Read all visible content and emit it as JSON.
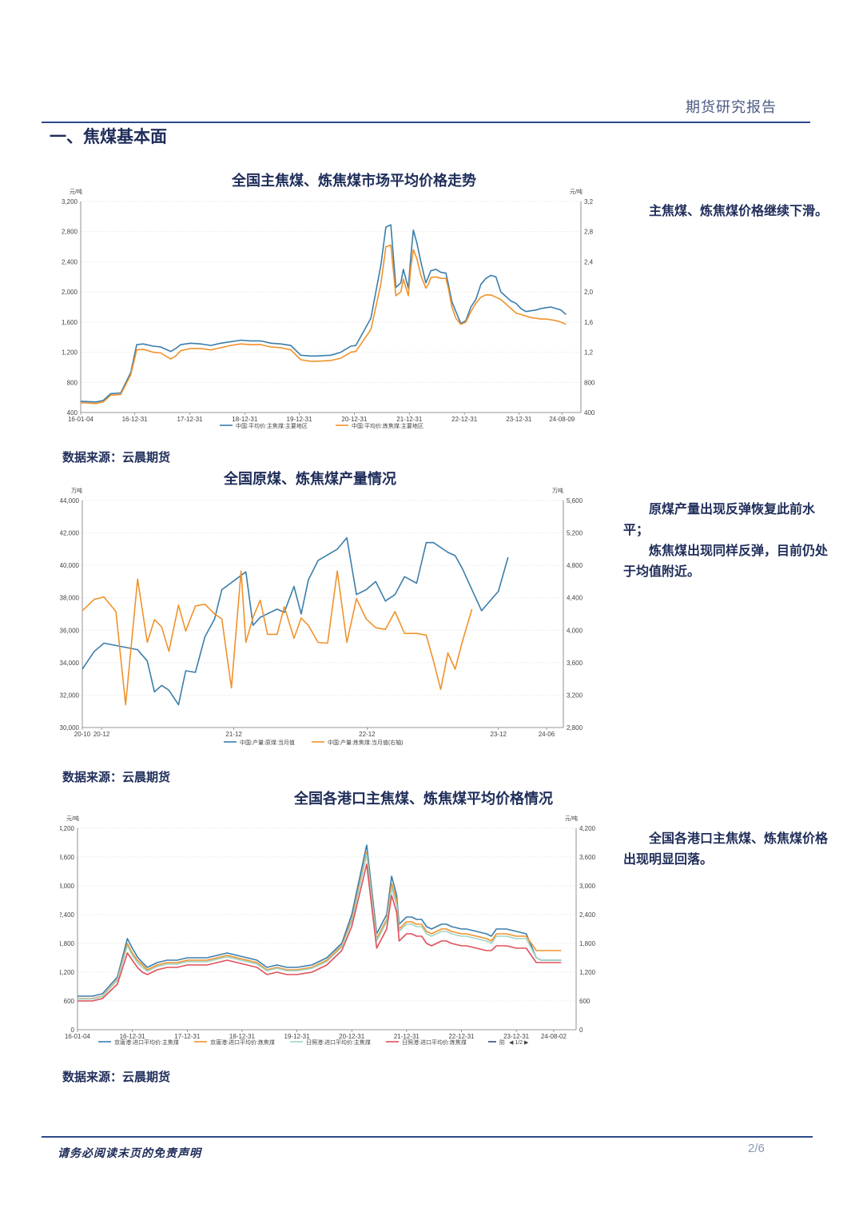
{
  "header": {
    "title": "期货研究报告"
  },
  "section": {
    "title": "一、焦煤基本面"
  },
  "chart1": {
    "title": "全国主焦煤、炼焦煤市场平均价格走势",
    "source": "数据来源：云晨期货",
    "comment": [
      "主焦煤、炼焦煤价格继续下滑。"
    ]
  },
  "chart2": {
    "title": "全国原煤、炼焦煤产量情况",
    "source": "数据来源：云晨期货",
    "comment": [
      "原煤产量出现反弹恢复此前水平；",
      "炼焦煤出现同样反弹，目前仍处于均值附近。"
    ]
  },
  "chart3": {
    "title": "全国各港口主焦煤、炼焦煤平均价格情况",
    "source": "数据来源：云晨期货",
    "comment": [
      "全国各港口主焦煤、炼焦煤价格出现明显回落。"
    ]
  },
  "footer": {
    "disclaimer": "请务必阅读末页的免责声明",
    "page": "2/6"
  },
  "chart_data": [
    {
      "type": "line",
      "title": "全国主焦煤、炼焦煤市场平均价格走势",
      "yunit_left": "元/吨",
      "yunit_right": "元/吨",
      "ylim": [
        400,
        3200
      ],
      "yticks": [
        "400",
        "800",
        "1,200",
        "1,600",
        "2,000",
        "2,400",
        "2,800",
        "3,200"
      ],
      "yticks_right": [
        "400",
        "800",
        "1,2",
        "1,6",
        "2,0",
        "2,4",
        "2,8",
        "3,2"
      ],
      "xtick_labels": [
        "16-01-04",
        "16-12-31",
        "17-12-31",
        "18-12-31",
        "19-12-31",
        "20-12-31",
        "21-12-31",
        "22-12-31",
        "23-12-31",
        "24-08-09"
      ],
      "xtick_pos": [
        0.0,
        0.108,
        0.218,
        0.328,
        0.437,
        0.547,
        0.657,
        0.767,
        0.876,
        0.962
      ],
      "x": [
        0,
        0.03,
        0.045,
        0.06,
        0.08,
        0.1,
        0.112,
        0.125,
        0.145,
        0.16,
        0.18,
        0.19,
        0.2,
        0.22,
        0.24,
        0.26,
        0.28,
        0.3,
        0.32,
        0.34,
        0.36,
        0.38,
        0.4,
        0.42,
        0.44,
        0.46,
        0.47,
        0.5,
        0.52,
        0.54,
        0.55,
        0.58,
        0.6,
        0.61,
        0.62,
        0.63,
        0.64,
        0.645,
        0.655,
        0.66,
        0.665,
        0.672,
        0.68,
        0.69,
        0.695,
        0.7,
        0.71,
        0.72,
        0.73,
        0.735,
        0.742,
        0.75,
        0.76,
        0.77,
        0.78,
        0.79,
        0.8,
        0.81,
        0.82,
        0.83,
        0.84,
        0.86,
        0.87,
        0.88,
        0.89,
        0.9,
        0.91,
        0.92,
        0.93,
        0.94,
        0.95,
        0.96,
        0.97
      ],
      "series": [
        {
          "name": "中国:平均价:主焦煤:主要地区",
          "color": "#3b7eab",
          "values": [
            550,
            540,
            560,
            650,
            660,
            930,
            1300,
            1310,
            1280,
            1270,
            1210,
            1250,
            1300,
            1320,
            1310,
            1290,
            1320,
            1340,
            1360,
            1350,
            1350,
            1320,
            1310,
            1290,
            1160,
            1150,
            1150,
            1160,
            1200,
            1280,
            1290,
            1650,
            2350,
            2860,
            2890,
            2060,
            2120,
            2300,
            2050,
            2480,
            2820,
            2650,
            2400,
            2120,
            2200,
            2280,
            2300,
            2260,
            2250,
            2100,
            1870,
            1740,
            1580,
            1620,
            1800,
            1900,
            2100,
            2180,
            2220,
            2200,
            2000,
            1880,
            1850,
            1780,
            1740,
            1750,
            1760,
            1780,
            1790,
            1800,
            1780,
            1760,
            1700
          ]
        },
        {
          "name": "中国:平均价:炼焦煤:主要地区",
          "color": "#f0922b",
          "values": [
            530,
            520,
            540,
            630,
            640,
            900,
            1230,
            1240,
            1200,
            1190,
            1110,
            1150,
            1220,
            1250,
            1250,
            1230,
            1260,
            1290,
            1310,
            1300,
            1300,
            1270,
            1260,
            1230,
            1100,
            1080,
            1080,
            1090,
            1120,
            1200,
            1210,
            1500,
            2100,
            2600,
            2620,
            1950,
            2000,
            2170,
            1950,
            2330,
            2560,
            2440,
            2220,
            2050,
            2100,
            2190,
            2200,
            2180,
            2180,
            2050,
            1800,
            1650,
            1570,
            1600,
            1740,
            1850,
            1930,
            1960,
            1960,
            1930,
            1900,
            1780,
            1720,
            1700,
            1680,
            1660,
            1650,
            1640,
            1640,
            1630,
            1620,
            1600,
            1570
          ]
        }
      ]
    },
    {
      "type": "line",
      "title": "全国原煤、炼焦煤产量情况",
      "yunit_left": "万吨",
      "yunit_right": "万吨",
      "ylim": [
        30000,
        44000
      ],
      "ylim_right": [
        2800,
        5600
      ],
      "yticks": [
        "30,000",
        "32,000",
        "34,000",
        "36,000",
        "38,000",
        "40,000",
        "42,000",
        "44,000"
      ],
      "yticks_right": [
        "2,800",
        "3,200",
        "3,600",
        "4,000",
        "4,400",
        "4,800",
        "5,200",
        "5,600"
      ],
      "xtick_labels": [
        "20-10",
        "20-12",
        "21-12",
        "22-12",
        "23-12",
        "24-06"
      ],
      "xtick_pos": [
        0.0,
        0.04,
        0.315,
        0.592,
        0.865,
        0.965
      ],
      "x": [
        0,
        0.025,
        0.045,
        0.07,
        0.09,
        0.115,
        0.135,
        0.15,
        0.165,
        0.18,
        0.2,
        0.215,
        0.235,
        0.255,
        0.275,
        0.29,
        0.31,
        0.33,
        0.34,
        0.355,
        0.37,
        0.385,
        0.405,
        0.42,
        0.44,
        0.455,
        0.47,
        0.49,
        0.51,
        0.53,
        0.55,
        0.57,
        0.59,
        0.61,
        0.63,
        0.65,
        0.67,
        0.695,
        0.715,
        0.73,
        0.745,
        0.76,
        0.775,
        0.79,
        0.81,
        0.83,
        0.85,
        0.865,
        0.885,
        0.905,
        0.925,
        0.945,
        0.965
      ],
      "series": [
        {
          "name": "中国:产量:原煤:当月值",
          "color": "#3b7eab",
          "values": [
            33600,
            34700,
            35200,
            null,
            null,
            34800,
            34100,
            32200,
            32600,
            32300,
            31400,
            33500,
            33400,
            35600,
            36700,
            38500,
            null,
            null,
            39600,
            36300,
            36800,
            null,
            37300,
            37100,
            38700,
            37000,
            39100,
            40300,
            null,
            41000,
            41700,
            38200,
            38500,
            39000,
            37800,
            38200,
            39300,
            38900,
            41400,
            41400,
            null,
            40800,
            40600,
            39800,
            38500,
            37200,
            null,
            38400,
            40500,
            null,
            null,
            null,
            null
          ],
          "axis": "left"
        },
        {
          "name": "中国:产量:炼焦煤:当月值(右轴)",
          "color": "#f0922b",
          "values": [
            4240,
            4380,
            4410,
            4230,
            3080,
            4630,
            3850,
            4130,
            4040,
            3740,
            4310,
            3990,
            4300,
            4320,
            4200,
            4140,
            3290,
            4730,
            3850,
            4160,
            4370,
            3950,
            3950,
            4290,
            3900,
            4150,
            4060,
            3850,
            3840,
            4730,
            3850,
            4390,
            4140,
            4030,
            4010,
            4230,
            3960,
            3960,
            3940,
            3620,
            3270,
            3720,
            3520,
            3860,
            4260,
            null,
            null,
            null,
            null,
            null,
            null,
            null,
            null
          ],
          "axis": "right"
        }
      ]
    },
    {
      "type": "line",
      "title": "全国各港口主焦煤、炼焦煤平均价格情况",
      "yunit_left": "元/吨",
      "yunit_right": "元/吨",
      "ylim": [
        0,
        4200
      ],
      "yticks": [
        "0",
        "600",
        "1,200",
        "1,800",
        "2,400",
        "3,000",
        "3,600",
        "4,200"
      ],
      "yticks_right": [
        "0",
        "600",
        "1,200",
        "1,800",
        "2,400",
        "3,000",
        "3,600",
        "4,200"
      ],
      "xtick_labels": [
        "16-01-04",
        "16-12-31",
        "17-12-31",
        "18-12-31",
        "19-12-31",
        "20-12-31",
        "21-12-31",
        "22-12-31",
        "23-12-31",
        "24-08-02"
      ],
      "xtick_pos": [
        0.0,
        0.11,
        0.22,
        0.33,
        0.44,
        0.55,
        0.66,
        0.77,
        0.88,
        0.955
      ],
      "legend_pager": "1/2",
      "x": [
        0,
        0.03,
        0.05,
        0.08,
        0.1,
        0.11,
        0.12,
        0.13,
        0.14,
        0.16,
        0.18,
        0.2,
        0.22,
        0.24,
        0.26,
        0.28,
        0.3,
        0.32,
        0.34,
        0.36,
        0.38,
        0.4,
        0.42,
        0.44,
        0.47,
        0.5,
        0.53,
        0.55,
        0.58,
        0.6,
        0.62,
        0.63,
        0.64,
        0.645,
        0.655,
        0.66,
        0.67,
        0.68,
        0.69,
        0.7,
        0.71,
        0.72,
        0.73,
        0.74,
        0.75,
        0.77,
        0.78,
        0.8,
        0.82,
        0.83,
        0.84,
        0.86,
        0.88,
        0.9,
        0.92,
        0.93,
        0.94,
        0.95,
        0.96,
        0.97
      ],
      "series": [
        {
          "name": "京唐港:进口平均价:主焦煤",
          "color": "#3b7eab",
          "values": [
            700,
            700,
            750,
            1100,
            1900,
            1700,
            1520,
            1400,
            1300,
            1400,
            1450,
            1450,
            1500,
            1500,
            1500,
            1550,
            1600,
            1550,
            1500,
            1450,
            1300,
            1350,
            1300,
            1300,
            1350,
            1500,
            1800,
            2400,
            3850,
            2000,
            2400,
            3200,
            2800,
            2200,
            2300,
            2350,
            2350,
            2300,
            2300,
            2150,
            2100,
            2150,
            2200,
            2200,
            2150,
            2100,
            2100,
            2050,
            2000,
            1950,
            2100,
            2100,
            2050,
            2000,
            1500,
            1450,
            1450,
            1450,
            1450,
            1450
          ]
        },
        {
          "name": "京唐港:进口平均价:炼焦煤",
          "color": "#f0922b",
          "values": [
            650,
            650,
            700,
            1050,
            1800,
            1600,
            1450,
            1350,
            1250,
            1350,
            1400,
            1400,
            1450,
            1450,
            1450,
            1500,
            1550,
            1500,
            1450,
            1400,
            1250,
            1300,
            1250,
            1250,
            1300,
            1450,
            1750,
            2300,
            3700,
            1900,
            2300,
            3050,
            2700,
            2100,
            2200,
            2250,
            2250,
            2200,
            2200,
            2050,
            2000,
            2050,
            2100,
            2100,
            2050,
            2000,
            2000,
            1950,
            1900,
            1850,
            2000,
            2000,
            1950,
            1950,
            1650,
            1650,
            1650,
            1650,
            1650,
            1650
          ]
        },
        {
          "name": "日照港:进口平均价:主焦煤",
          "color": "#9fd3c6",
          "values": [
            640,
            640,
            690,
            1030,
            1750,
            1550,
            1400,
            1300,
            1220,
            1320,
            1370,
            1370,
            1420,
            1420,
            1420,
            1470,
            1520,
            1470,
            1420,
            1370,
            1230,
            1280,
            1230,
            1230,
            1280,
            1420,
            1720,
            2250,
            3650,
            1850,
            2250,
            2950,
            2600,
            2050,
            2150,
            2200,
            2200,
            2150,
            2150,
            2000,
            1950,
            2000,
            2050,
            2050,
            2000,
            1950,
            1950,
            1900,
            1850,
            1800,
            1950,
            1950,
            1900,
            1900,
            1500,
            1450,
            1450,
            1450,
            1450,
            1450
          ]
        },
        {
          "name": "日照港:进口平均价:炼焦煤",
          "color": "#e0505a",
          "values": [
            600,
            600,
            650,
            950,
            1600,
            1450,
            1300,
            1200,
            1150,
            1250,
            1300,
            1300,
            1350,
            1350,
            1350,
            1400,
            1450,
            1400,
            1350,
            1300,
            1150,
            1200,
            1150,
            1150,
            1200,
            1350,
            1650,
            2150,
            3450,
            1700,
            2100,
            2800,
            2450,
            1850,
            1950,
            2000,
            2000,
            1950,
            1950,
            1800,
            1750,
            1800,
            1850,
            1850,
            1800,
            1750,
            1750,
            1700,
            1650,
            1650,
            1750,
            1750,
            1700,
            1700,
            1400,
            1400,
            1400,
            1400,
            1400,
            1400
          ]
        }
      ],
      "legend_extra": "防"
    }
  ]
}
